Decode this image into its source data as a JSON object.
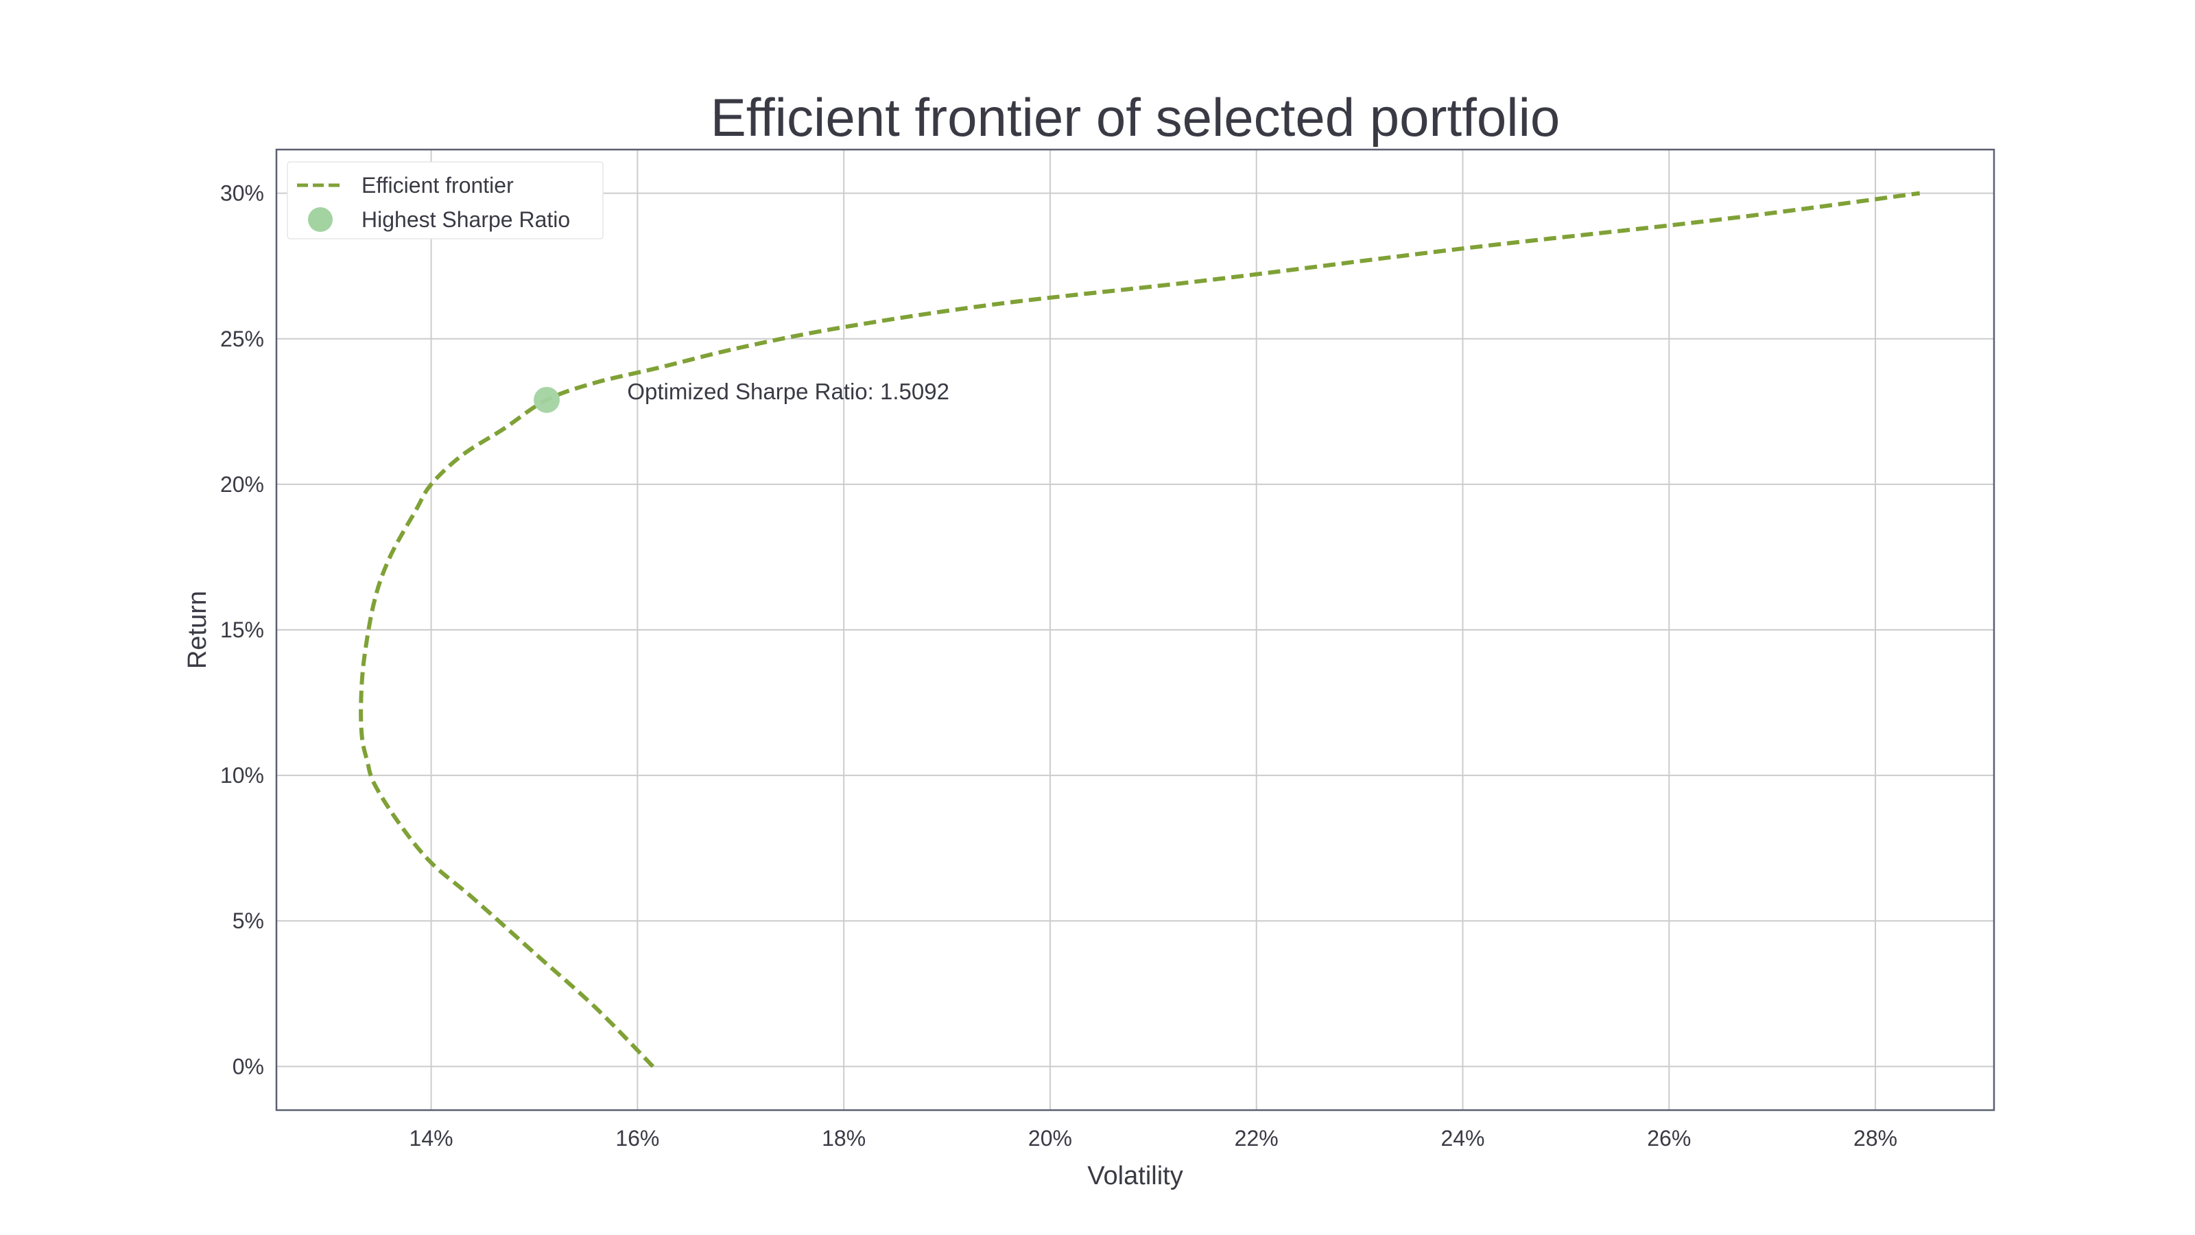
{
  "chart_data": {
    "type": "line",
    "title": "Efficient frontier of selected portfolio",
    "xlabel": "Volatility",
    "ylabel": "Return",
    "xlim": [
      0.125,
      0.2915
    ],
    "ylim": [
      -0.015,
      0.315
    ],
    "x_ticks": [
      0.14,
      0.16,
      0.18,
      0.2,
      0.22,
      0.24,
      0.26,
      0.28
    ],
    "x_tick_labels": [
      "14%",
      "16%",
      "18%",
      "20%",
      "22%",
      "24%",
      "26%",
      "28%"
    ],
    "y_ticks": [
      0.0,
      0.05,
      0.1,
      0.15,
      0.2,
      0.25,
      0.3
    ],
    "y_tick_labels": [
      "0%",
      "5%",
      "10%",
      "15%",
      "20%",
      "25%",
      "30%"
    ],
    "grid": true,
    "legend_position": "top-left",
    "series": [
      {
        "name": "Efficient frontier",
        "style": "dashed-line",
        "color": "#7fa136",
        "x": [
          0.1615,
          0.156,
          0.15,
          0.144,
          0.14,
          0.137,
          0.1345,
          0.1338,
          0.1333,
          0.1332,
          0.1335,
          0.1345,
          0.136,
          0.1385,
          0.14,
          0.143,
          0.147,
          0.1512,
          0.156,
          0.162,
          0.17,
          0.18,
          0.195,
          0.215,
          0.24,
          0.265,
          0.2843
        ],
        "y": [
          0.0,
          0.02,
          0.039,
          0.058,
          0.07,
          0.083,
          0.097,
          0.105,
          0.113,
          0.125,
          0.14,
          0.16,
          0.175,
          0.191,
          0.2,
          0.21,
          0.219,
          0.229,
          0.235,
          0.24,
          0.247,
          0.254,
          0.262,
          0.27,
          0.281,
          0.291,
          0.3
        ]
      },
      {
        "name": "Highest Sharpe Ratio",
        "style": "marker",
        "color": "#a3d3a1",
        "x": [
          0.1512
        ],
        "y": [
          0.229
        ]
      }
    ],
    "annotations": [
      {
        "text": "Optimized Sharpe Ratio: 1.5092",
        "x": 0.159,
        "y": 0.229
      }
    ]
  },
  "colors": {
    "frontier": "#7fa136",
    "marker": "#a3d3a1",
    "grid": "#cccccc",
    "spine": "#5a6070",
    "text": "#3a3a45"
  }
}
